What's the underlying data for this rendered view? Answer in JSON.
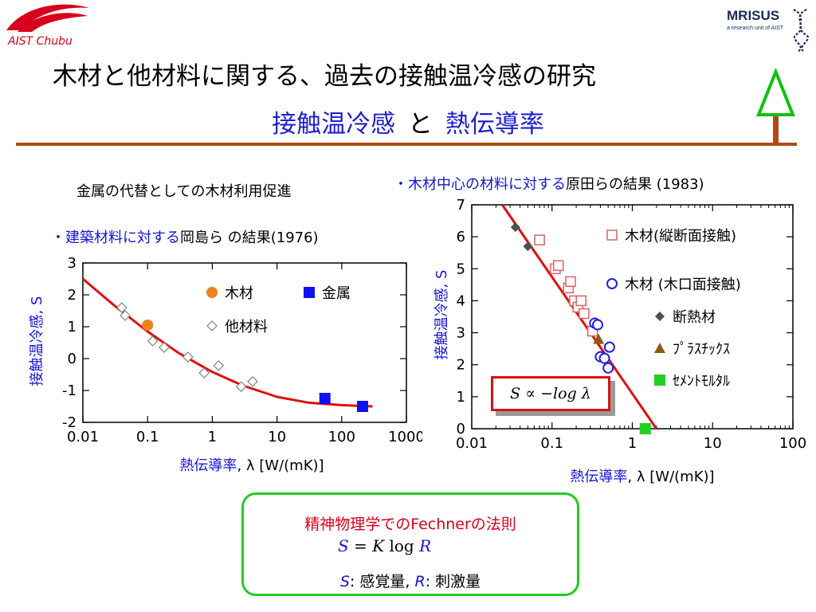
{
  "logos": {
    "left_text": "AIST Chubu",
    "right_brand": "MRISUS",
    "right_tagline": "a research unit of AIST"
  },
  "header": {
    "title": "木材と他材料に関する、過去の接触温冷感の研究",
    "subtitle_part1": "接触温冷感",
    "subtitle_connector": "と",
    "subtitle_part2": "熱伝導率"
  },
  "left_panel": {
    "note_top": "金属の代替としての木材利用促進",
    "note_study_bullet": "・",
    "note_study_blue": "建築材料に対する",
    "note_study_rest": "岡島ら の結果(1976)"
  },
  "right_panel": {
    "note_study_bullet": "・",
    "note_study_blue": "木材中心の材料に対する",
    "note_study_rest": "原田らの結果 (1983)",
    "formula": "S ∝ −log λ"
  },
  "law": {
    "heading": "精神物理学でのFechnerの法則",
    "formula_S": "S",
    "formula_eq": " = ",
    "formula_K": "K",
    "formula_log": " log ",
    "formula_R": "R",
    "def_S": "S",
    "def_S_text": ": 感覚量, ",
    "def_R": "R",
    "def_R_text": ": 刺激量"
  },
  "chart_data": [
    {
      "type": "scatter",
      "xscale": "log",
      "xlim": [
        0.01,
        1000
      ],
      "ylim": [
        -2,
        3
      ],
      "x_ticks": [
        "0.01",
        "0.1",
        "1",
        "10",
        "100",
        "1000"
      ],
      "y_ticks": [
        "-2",
        "-1",
        "0",
        "1",
        "2",
        "3"
      ],
      "xlabel_main": "熱伝導率",
      "xlabel_unit": ", λ [W/(mK)]",
      "ylabel": "接触温冷感, S",
      "series": [
        {
          "name": "木材",
          "marker": "circle-filled",
          "color": "#f08020",
          "points": [
            [
              0.1,
              1.05
            ]
          ]
        },
        {
          "name": "金属",
          "marker": "square-filled",
          "color": "#1010f0",
          "points": [
            [
              55,
              -1.25
            ],
            [
              210,
              -1.5
            ]
          ]
        },
        {
          "name": "他材料",
          "marker": "diamond-open",
          "color": "#808080",
          "points": [
            [
              0.04,
              1.6
            ],
            [
              0.045,
              1.35
            ],
            [
              0.12,
              0.55
            ],
            [
              0.18,
              0.35
            ],
            [
              0.42,
              0.05
            ],
            [
              0.75,
              -0.45
            ],
            [
              1.25,
              -0.22
            ],
            [
              2.8,
              -0.88
            ],
            [
              4.2,
              -0.72
            ]
          ]
        }
      ],
      "fit_curve": {
        "color": "#e01010",
        "points": [
          [
            0.01,
            2.5
          ],
          [
            0.03,
            1.68
          ],
          [
            0.1,
            0.85
          ],
          [
            0.3,
            0.18
          ],
          [
            1,
            -0.42
          ],
          [
            3,
            -0.85
          ],
          [
            10,
            -1.2
          ],
          [
            30,
            -1.38
          ],
          [
            100,
            -1.46
          ],
          [
            300,
            -1.5
          ]
        ]
      }
    },
    {
      "type": "scatter",
      "xscale": "log",
      "xlim": [
        0.01,
        100
      ],
      "ylim": [
        0,
        7
      ],
      "x_ticks": [
        "0.01",
        "0.1",
        "1",
        "10",
        "100"
      ],
      "y_ticks": [
        "0",
        "1",
        "2",
        "3",
        "4",
        "5",
        "6",
        "7"
      ],
      "xlabel_main": "熱伝導率",
      "xlabel_unit": ", λ [W/(mK)]",
      "ylabel": "接触温冷感, S",
      "series": [
        {
          "name": "木材(縦断面接触)",
          "marker": "square-open",
          "color": "#e06060",
          "points": [
            [
              0.07,
              5.9
            ],
            [
              0.11,
              5.0
            ],
            [
              0.12,
              5.1
            ],
            [
              0.16,
              4.4
            ],
            [
              0.17,
              4.6
            ],
            [
              0.19,
              4.0
            ],
            [
              0.21,
              3.8
            ],
            [
              0.23,
              4.0
            ],
            [
              0.25,
              3.6
            ],
            [
              0.32,
              3.05
            ]
          ]
        },
        {
          "name": "木材 (木口面接触)",
          "marker": "circle-open",
          "color": "#2020e0",
          "points": [
            [
              0.34,
              3.3
            ],
            [
              0.37,
              3.25
            ],
            [
              0.4,
              2.25
            ],
            [
              0.45,
              2.2
            ],
            [
              0.5,
              1.9
            ],
            [
              0.52,
              2.55
            ]
          ]
        },
        {
          "name": "断熱材",
          "marker": "diamond-filled",
          "color": "#505050",
          "points": [
            [
              0.035,
              6.3
            ],
            [
              0.05,
              5.7
            ]
          ]
        },
        {
          "name": "ﾌﾟﾗｽﾁｯｸｽ",
          "marker": "triangle-filled",
          "color": "#8b5a14",
          "points": [
            [
              0.38,
              2.8
            ]
          ]
        },
        {
          "name": "ｾﾒﾝﾄﾓﾙﾀﾙ",
          "marker": "square-filled",
          "color": "#20d020",
          "points": [
            [
              1.45,
              0
            ]
          ]
        }
      ],
      "fit_line": {
        "color": "#e01010",
        "points": [
          [
            0.024,
            7
          ],
          [
            2.0,
            0
          ]
        ]
      }
    }
  ],
  "colors": {
    "accent_blue": "#1515d6",
    "accent_red": "#d8001c",
    "rule_brown": "#b04a14",
    "box_green": "#22cc22"
  }
}
